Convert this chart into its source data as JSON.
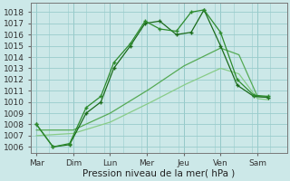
{
  "xlabel": "Pression niveau de la mer( hPa )",
  "background_color": "#cce8e8",
  "grid_color": "#99cccc",
  "ylim": [
    1005.5,
    1018.8
  ],
  "yticks": [
    1006,
    1007,
    1008,
    1009,
    1010,
    1011,
    1012,
    1013,
    1014,
    1015,
    1016,
    1017,
    1018
  ],
  "x_labels": [
    "Mar",
    "Dim",
    "Lun",
    "Mer",
    "Jeu",
    "Ven",
    "Sam"
  ],
  "x_positions": [
    0,
    1,
    2,
    3,
    4,
    5,
    6
  ],
  "xlim": [
    -0.15,
    6.8
  ],
  "line_dark": "#1a6b1a",
  "line_mid": "#2d8b2d",
  "line_light": "#55aa55",
  "line_vlight": "#88cc88",
  "series1_x": [
    0,
    0.45,
    0.9,
    1.35,
    1.75,
    2.1,
    2.55,
    2.95,
    3.35,
    3.8,
    4.2,
    4.55,
    5.0,
    5.45,
    5.9,
    6.3
  ],
  "series1_y": [
    1008,
    1006,
    1006.2,
    1009.0,
    1010.0,
    1013.0,
    1015.0,
    1017.0,
    1017.2,
    1016.0,
    1016.2,
    1018.2,
    1015.0,
    1011.5,
    1010.5,
    1010.4
  ],
  "series2_x": [
    0,
    0.45,
    0.9,
    1.35,
    1.75,
    2.1,
    2.55,
    2.95,
    3.35,
    3.8,
    4.2,
    4.55,
    5.0,
    5.45,
    5.9,
    6.3
  ],
  "series2_y": [
    1008,
    1006,
    1006.3,
    1009.5,
    1010.5,
    1013.5,
    1015.2,
    1017.2,
    1016.5,
    1016.3,
    1018.0,
    1018.2,
    1016.2,
    1012.0,
    1010.6,
    1010.5
  ],
  "smooth1_x": [
    0,
    1,
    2,
    3,
    4,
    5,
    5.5,
    6.0,
    6.3
  ],
  "smooth1_y": [
    1007.5,
    1007.5,
    1009.0,
    1011.0,
    1013.2,
    1014.8,
    1014.2,
    1010.5,
    1010.4
  ],
  "smooth2_x": [
    0,
    1,
    2,
    3,
    4,
    5,
    5.5,
    6.0,
    6.3
  ],
  "smooth2_y": [
    1007.0,
    1007.2,
    1008.2,
    1009.8,
    1011.5,
    1013.0,
    1012.5,
    1010.3,
    1010.2
  ],
  "xlabel_fontsize": 7.5,
  "tick_fontsize": 6.5
}
